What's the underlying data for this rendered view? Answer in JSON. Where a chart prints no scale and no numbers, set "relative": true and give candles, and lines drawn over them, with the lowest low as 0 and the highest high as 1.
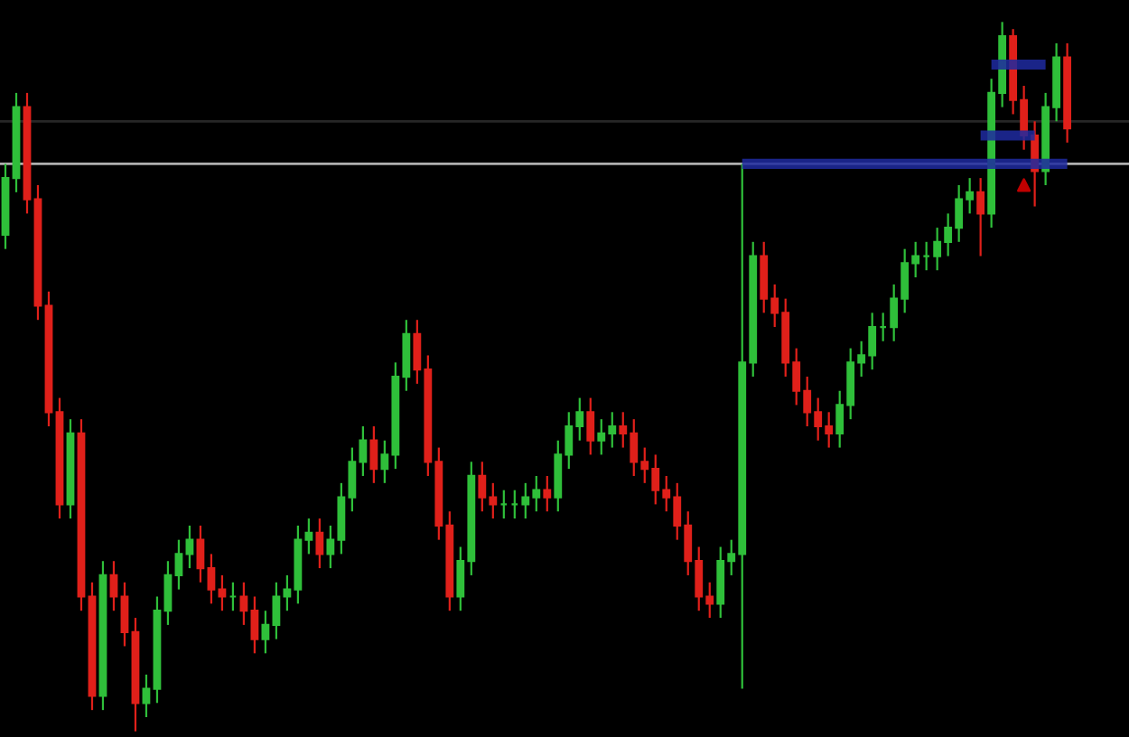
{
  "chart_data": {
    "type": "candlestick",
    "relative": true,
    "categories": [
      null,
      null,
      null,
      null,
      null,
      null,
      null,
      null,
      null,
      null,
      null,
      null,
      null,
      null,
      null,
      null,
      null,
      null,
      null,
      null,
      null,
      null,
      null,
      null,
      null,
      null,
      null,
      null,
      null,
      null,
      null,
      null,
      null,
      null,
      null,
      null,
      null,
      null,
      null,
      null,
      null,
      null,
      null,
      null,
      null,
      null,
      null,
      null,
      null,
      null,
      null,
      null,
      null,
      null,
      null,
      null,
      null,
      null,
      null,
      null,
      null,
      null,
      null,
      null,
      null,
      null,
      null,
      null,
      null,
      null,
      null,
      null,
      null,
      null,
      null,
      null,
      null,
      null,
      null,
      null,
      null,
      null,
      null,
      null,
      null,
      null,
      null,
      null,
      null,
      null,
      null,
      null,
      null,
      null,
      null,
      null,
      null,
      null,
      null
    ],
    "ohlc": [
      [
        0.7,
        0.8,
        0.68,
        0.78
      ],
      [
        0.78,
        0.9,
        0.76,
        0.88
      ],
      [
        0.88,
        0.9,
        0.73,
        0.75
      ],
      [
        0.75,
        0.77,
        0.58,
        0.6
      ],
      [
        0.6,
        0.62,
        0.43,
        0.45
      ],
      [
        0.45,
        0.47,
        0.3,
        0.32
      ],
      [
        0.32,
        0.44,
        0.3,
        0.42
      ],
      [
        0.42,
        0.44,
        0.17,
        0.19
      ],
      [
        0.19,
        0.21,
        0.03,
        0.05
      ],
      [
        0.05,
        0.24,
        0.03,
        0.22
      ],
      [
        0.22,
        0.24,
        0.17,
        0.19
      ],
      [
        0.19,
        0.21,
        0.12,
        0.14
      ],
      [
        0.14,
        0.16,
        0.0,
        0.04
      ],
      [
        0.04,
        0.08,
        0.02,
        0.06
      ],
      [
        0.06,
        0.19,
        0.04,
        0.17
      ],
      [
        0.17,
        0.24,
        0.15,
        0.22
      ],
      [
        0.22,
        0.27,
        0.2,
        0.25
      ],
      [
        0.25,
        0.29,
        0.23,
        0.27
      ],
      [
        0.27,
        0.29,
        0.21,
        0.23
      ],
      [
        0.23,
        0.25,
        0.18,
        0.2
      ],
      [
        0.2,
        0.22,
        0.17,
        0.19
      ],
      [
        0.19,
        0.21,
        0.17,
        0.19
      ],
      [
        0.19,
        0.21,
        0.15,
        0.17
      ],
      [
        0.17,
        0.19,
        0.11,
        0.13
      ],
      [
        0.13,
        0.17,
        0.11,
        0.15
      ],
      [
        0.15,
        0.21,
        0.13,
        0.19
      ],
      [
        0.19,
        0.22,
        0.17,
        0.2
      ],
      [
        0.2,
        0.29,
        0.18,
        0.27
      ],
      [
        0.27,
        0.3,
        0.25,
        0.28
      ],
      [
        0.28,
        0.3,
        0.23,
        0.25
      ],
      [
        0.25,
        0.29,
        0.23,
        0.27
      ],
      [
        0.27,
        0.35,
        0.25,
        0.33
      ],
      [
        0.33,
        0.4,
        0.31,
        0.38
      ],
      [
        0.38,
        0.43,
        0.36,
        0.41
      ],
      [
        0.41,
        0.43,
        0.35,
        0.37
      ],
      [
        0.37,
        0.41,
        0.35,
        0.39
      ],
      [
        0.39,
        0.52,
        0.37,
        0.5
      ],
      [
        0.5,
        0.58,
        0.48,
        0.56
      ],
      [
        0.56,
        0.58,
        0.49,
        0.51
      ],
      [
        0.51,
        0.53,
        0.36,
        0.38
      ],
      [
        0.38,
        0.4,
        0.27,
        0.29
      ],
      [
        0.29,
        0.31,
        0.17,
        0.19
      ],
      [
        0.19,
        0.26,
        0.17,
        0.24
      ],
      [
        0.24,
        0.38,
        0.22,
        0.36
      ],
      [
        0.36,
        0.38,
        0.31,
        0.33
      ],
      [
        0.33,
        0.35,
        0.3,
        0.32
      ],
      [
        0.32,
        0.34,
        0.3,
        0.32
      ],
      [
        0.32,
        0.34,
        0.3,
        0.32
      ],
      [
        0.32,
        0.35,
        0.3,
        0.33
      ],
      [
        0.33,
        0.36,
        0.31,
        0.34
      ],
      [
        0.34,
        0.36,
        0.31,
        0.33
      ],
      [
        0.33,
        0.41,
        0.31,
        0.39
      ],
      [
        0.39,
        0.45,
        0.37,
        0.43
      ],
      [
        0.43,
        0.47,
        0.41,
        0.45
      ],
      [
        0.45,
        0.47,
        0.39,
        0.41
      ],
      [
        0.41,
        0.44,
        0.39,
        0.42
      ],
      [
        0.42,
        0.45,
        0.4,
        0.43
      ],
      [
        0.43,
        0.45,
        0.4,
        0.42
      ],
      [
        0.42,
        0.44,
        0.36,
        0.38
      ],
      [
        0.38,
        0.4,
        0.35,
        0.37
      ],
      [
        0.37,
        0.39,
        0.32,
        0.34
      ],
      [
        0.34,
        0.36,
        0.31,
        0.33
      ],
      [
        0.33,
        0.35,
        0.27,
        0.29
      ],
      [
        0.29,
        0.31,
        0.22,
        0.24
      ],
      [
        0.24,
        0.26,
        0.17,
        0.19
      ],
      [
        0.19,
        0.21,
        0.16,
        0.18
      ],
      [
        0.18,
        0.26,
        0.16,
        0.24
      ],
      [
        0.24,
        0.27,
        0.22,
        0.25
      ],
      [
        0.25,
        0.8,
        0.06,
        0.52
      ],
      [
        0.52,
        0.69,
        0.5,
        0.67
      ],
      [
        0.67,
        0.69,
        0.59,
        0.61
      ],
      [
        0.61,
        0.63,
        0.57,
        0.59
      ],
      [
        0.59,
        0.61,
        0.5,
        0.52
      ],
      [
        0.52,
        0.54,
        0.46,
        0.48
      ],
      [
        0.48,
        0.5,
        0.43,
        0.45
      ],
      [
        0.45,
        0.47,
        0.41,
        0.43
      ],
      [
        0.43,
        0.45,
        0.4,
        0.42
      ],
      [
        0.42,
        0.48,
        0.4,
        0.46
      ],
      [
        0.46,
        0.54,
        0.44,
        0.52
      ],
      [
        0.52,
        0.55,
        0.5,
        0.53
      ],
      [
        0.53,
        0.59,
        0.51,
        0.57
      ],
      [
        0.57,
        0.59,
        0.55,
        0.57
      ],
      [
        0.57,
        0.63,
        0.55,
        0.61
      ],
      [
        0.61,
        0.68,
        0.59,
        0.66
      ],
      [
        0.66,
        0.69,
        0.64,
        0.67
      ],
      [
        0.67,
        0.69,
        0.65,
        0.67
      ],
      [
        0.67,
        0.71,
        0.65,
        0.69
      ],
      [
        0.69,
        0.73,
        0.67,
        0.71
      ],
      [
        0.71,
        0.77,
        0.69,
        0.75
      ],
      [
        0.75,
        0.78,
        0.73,
        0.76
      ],
      [
        0.76,
        0.78,
        0.67,
        0.73
      ],
      [
        0.73,
        0.92,
        0.71,
        0.9
      ],
      [
        0.9,
        1.0,
        0.88,
        0.98
      ],
      [
        0.98,
        0.99,
        0.87,
        0.89
      ],
      [
        0.89,
        0.91,
        0.82,
        0.84
      ],
      [
        0.84,
        0.86,
        0.74,
        0.79
      ],
      [
        0.79,
        0.9,
        0.77,
        0.88
      ],
      [
        0.88,
        0.97,
        0.86,
        0.95
      ],
      [
        0.95,
        0.97,
        0.83,
        0.85
      ]
    ],
    "colors": [
      "#2fbf3a",
      "#2fbf3a",
      "#e0201a",
      "#e0201a",
      "#e0201a",
      "#e0201a",
      "#2fbf3a",
      "#e0201a",
      "#e0201a",
      "#2fbf3a",
      "#e0201a",
      "#e0201a",
      "#e0201a",
      "#2fbf3a",
      "#2fbf3a",
      "#2fbf3a",
      "#2fbf3a",
      "#2fbf3a",
      "#e0201a",
      "#e0201a",
      "#e0201a",
      "#2fbf3a",
      "#e0201a",
      "#e0201a",
      "#2fbf3a",
      "#2fbf3a",
      "#2fbf3a",
      "#2fbf3a",
      "#2fbf3a",
      "#e0201a",
      "#2fbf3a",
      "#2fbf3a",
      "#2fbf3a",
      "#2fbf3a",
      "#e0201a",
      "#2fbf3a",
      "#2fbf3a",
      "#2fbf3a",
      "#e0201a",
      "#e0201a",
      "#e0201a",
      "#e0201a",
      "#2fbf3a",
      "#2fbf3a",
      "#e0201a",
      "#e0201a",
      "#2fbf3a",
      "#2fbf3a",
      "#2fbf3a",
      "#2fbf3a",
      "#e0201a",
      "#2fbf3a",
      "#2fbf3a",
      "#2fbf3a",
      "#e0201a",
      "#2fbf3a",
      "#2fbf3a",
      "#e0201a",
      "#e0201a",
      "#e0201a",
      "#e0201a",
      "#e0201a",
      "#e0201a",
      "#e0201a",
      "#e0201a",
      "#e0201a",
      "#2fbf3a",
      "#2fbf3a",
      "#2fbf3a",
      "#2fbf3a",
      "#e0201a",
      "#e0201a",
      "#e0201a",
      "#e0201a",
      "#e0201a",
      "#e0201a",
      "#e0201a",
      "#2fbf3a",
      "#2fbf3a",
      "#2fbf3a",
      "#2fbf3a",
      "#2fbf3a",
      "#2fbf3a",
      "#2fbf3a",
      "#2fbf3a",
      "#2fbf3a",
      "#2fbf3a",
      "#2fbf3a",
      "#2fbf3a",
      "#2fbf3a",
      "#e0201a",
      "#2fbf3a",
      "#2fbf3a",
      "#e0201a",
      "#e0201a",
      "#e0201a",
      "#2fbf3a",
      "#2fbf3a",
      "#e0201a"
    ],
    "series": [
      {
        "type": "line",
        "color": "#1e2aa0",
        "values": [
          null,
          null,
          null,
          null,
          null,
          null,
          null,
          null,
          null,
          null,
          null,
          null,
          null,
          null,
          null,
          null,
          null,
          null,
          null,
          null,
          null,
          null,
          null,
          null,
          null,
          null,
          null,
          null,
          null,
          null,
          null,
          null,
          null,
          null,
          null,
          null,
          null,
          null,
          null,
          null,
          null,
          null,
          null,
          null,
          null,
          null,
          null,
          null,
          null,
          null,
          null,
          null,
          null,
          null,
          null,
          null,
          null,
          null,
          null,
          null,
          null,
          null,
          null,
          null,
          null,
          null,
          null,
          null,
          0.8,
          0.8,
          0.8,
          0.8,
          0.8,
          0.8,
          0.8,
          0.8,
          0.8,
          0.8,
          0.8,
          0.8,
          0.8,
          0.8,
          0.8,
          0.8,
          0.8,
          0.8,
          0.8,
          0.8,
          0.8,
          0.8,
          0.8,
          0.8,
          0.8,
          0.8,
          0.8,
          0.8,
          0.8,
          0.8,
          0.8
        ]
      },
      {
        "type": "line",
        "color": "#1e2aa0",
        "values": [
          null,
          null,
          null,
          null,
          null,
          null,
          null,
          null,
          null,
          null,
          null,
          null,
          null,
          null,
          null,
          null,
          null,
          null,
          null,
          null,
          null,
          null,
          null,
          null,
          null,
          null,
          null,
          null,
          null,
          null,
          null,
          null,
          null,
          null,
          null,
          null,
          null,
          null,
          null,
          null,
          null,
          null,
          null,
          null,
          null,
          null,
          null,
          null,
          null,
          null,
          null,
          null,
          null,
          null,
          null,
          null,
          null,
          null,
          null,
          null,
          null,
          null,
          null,
          null,
          null,
          null,
          null,
          null,
          null,
          null,
          null,
          null,
          null,
          null,
          null,
          null,
          null,
          null,
          null,
          null,
          null,
          null,
          null,
          null,
          null,
          null,
          null,
          null,
          null,
          null,
          0.84,
          0.84,
          0.84,
          0.84,
          0.84,
          0.84,
          null,
          null,
          null
        ]
      },
      {
        "type": "line",
        "color": "#1e2aa0",
        "values": [
          null,
          null,
          null,
          null,
          null,
          null,
          null,
          null,
          null,
          null,
          null,
          null,
          null,
          null,
          null,
          null,
          null,
          null,
          null,
          null,
          null,
          null,
          null,
          null,
          null,
          null,
          null,
          null,
          null,
          null,
          null,
          null,
          null,
          null,
          null,
          null,
          null,
          null,
          null,
          null,
          null,
          null,
          null,
          null,
          null,
          null,
          null,
          null,
          null,
          null,
          null,
          null,
          null,
          null,
          null,
          null,
          null,
          null,
          null,
          null,
          null,
          null,
          null,
          null,
          null,
          null,
          null,
          null,
          null,
          null,
          null,
          null,
          null,
          null,
          null,
          null,
          null,
          null,
          null,
          null,
          null,
          null,
          null,
          null,
          null,
          null,
          null,
          null,
          null,
          null,
          null,
          0.94,
          0.94,
          0.94,
          0.94,
          0.94,
          0.94,
          null,
          null
        ]
      },
      {
        "type": "scatter",
        "marker": "triangle",
        "color": "#c00000",
        "values": [
          null,
          null,
          null,
          null,
          null,
          null,
          null,
          null,
          null,
          null,
          null,
          null,
          null,
          null,
          null,
          null,
          null,
          null,
          null,
          null,
          null,
          null,
          null,
          null,
          null,
          null,
          null,
          null,
          null,
          null,
          null,
          null,
          null,
          null,
          null,
          null,
          null,
          null,
          null,
          null,
          null,
          null,
          null,
          null,
          null,
          null,
          null,
          null,
          null,
          null,
          null,
          null,
          null,
          null,
          null,
          null,
          null,
          null,
          null,
          null,
          null,
          null,
          null,
          null,
          null,
          null,
          null,
          null,
          null,
          null,
          null,
          null,
          null,
          null,
          null,
          null,
          null,
          null,
          null,
          null,
          null,
          null,
          null,
          null,
          null,
          null,
          null,
          null,
          null,
          null,
          null,
          null,
          null,
          null,
          0.77,
          null,
          null,
          null,
          null
        ]
      }
    ],
    "ref_lines": [
      {
        "axis": "y",
        "value": 0.8,
        "color": "#b0b0b0"
      },
      {
        "axis": "y",
        "value": 0.86,
        "color": "#262626"
      }
    ]
  }
}
